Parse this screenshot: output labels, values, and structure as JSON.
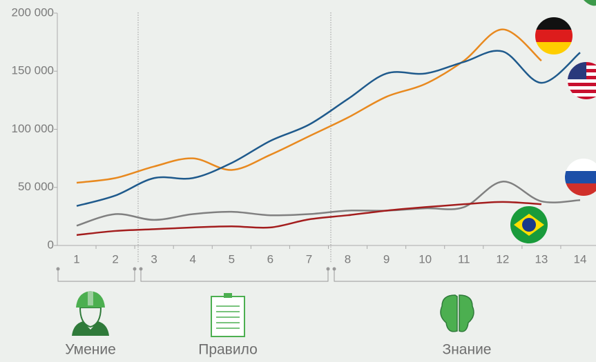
{
  "chart_data": {
    "type": "line",
    "categories": [
      "1",
      "2",
      "3",
      "4",
      "5",
      "6",
      "7",
      "8",
      "9",
      "10",
      "11",
      "12",
      "13",
      "14"
    ],
    "series": [
      {
        "color": "#e8891f",
        "values": [
          54000,
          58000,
          68000,
          75000,
          65000,
          78000,
          94000,
          110000,
          128000,
          139000,
          159000,
          186000,
          159000,
          null
        ]
      },
      {
        "color": "#1f5a8c",
        "values": [
          34000,
          43000,
          58000,
          58000,
          71000,
          90000,
          104000,
          126000,
          148000,
          148000,
          158000,
          167000,
          140000,
          166000
        ]
      },
      {
        "color": "#808080",
        "values": [
          17000,
          27000,
          22000,
          27000,
          29000,
          26000,
          27000,
          30000,
          30000,
          32000,
          33000,
          55000,
          38000,
          39000
        ]
      },
      {
        "color": "#a31d1d",
        "values": [
          9000,
          12500,
          14000,
          15500,
          16500,
          15500,
          22500,
          26000,
          30000,
          33000,
          35500,
          37500,
          35500,
          null
        ]
      }
    ],
    "ylim": [
      0,
      200000
    ],
    "yticks": [
      0,
      {
        "value": 50000,
        "label": "50 000"
      },
      {
        "value": 100000,
        "label": "100 000"
      },
      {
        "value": 150000,
        "label": "150 000"
      },
      {
        "value": 200000,
        "label": "200 000"
      }
    ],
    "groups": [
      "Умение",
      "Правило",
      "Знание"
    ]
  }
}
